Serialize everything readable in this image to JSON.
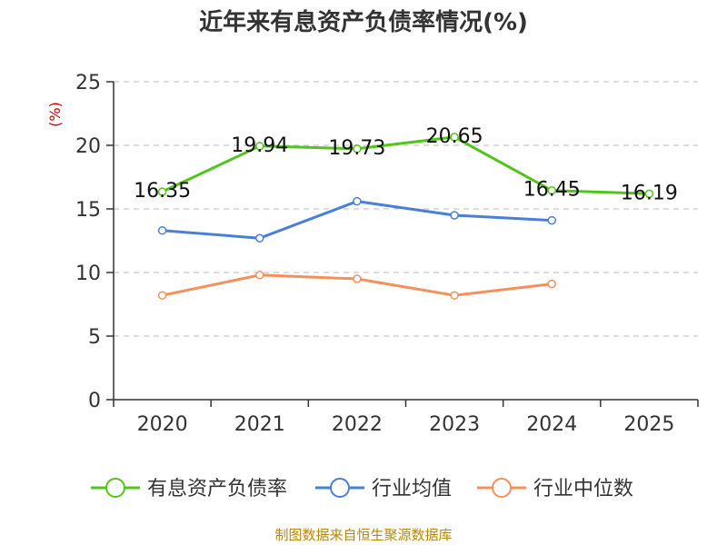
{
  "colors": {
    "series1": "#52c41a",
    "series2": "#4a7fd8",
    "series3": "#f5905a",
    "axis": "#333333",
    "grid": "#bbbbbb",
    "unit": "#cc0000",
    "source": "#b8860b"
  },
  "chart_data": {
    "type": "line",
    "title": "近年来有息资产负债率情况(%)",
    "ylabel": "(%)",
    "ylim": [
      0,
      25
    ],
    "yticks": [
      "0",
      "5",
      "10",
      "15",
      "20",
      "25"
    ],
    "ytick_values": [
      0,
      5,
      10,
      15,
      20,
      25
    ],
    "categories": [
      "2020",
      "2021",
      "2022",
      "2023",
      "2024",
      "2025"
    ],
    "grid": "horizontal dashed",
    "legend_position": "bottom",
    "series": [
      {
        "name": "有息资产负债率",
        "values": [
          16.35,
          19.94,
          19.73,
          20.65,
          16.45,
          16.19
        ],
        "labels": [
          "16.35",
          "19.94",
          "19.73",
          "20.65",
          "16.45",
          "16.19"
        ]
      },
      {
        "name": "行业均值",
        "values": [
          13.3,
          12.7,
          15.6,
          14.5,
          14.1,
          null
        ]
      },
      {
        "name": "行业中位数",
        "values": [
          8.2,
          9.8,
          9.5,
          8.2,
          9.1,
          null
        ]
      }
    ]
  },
  "source_note": "制图数据来自恒生聚源数据库"
}
